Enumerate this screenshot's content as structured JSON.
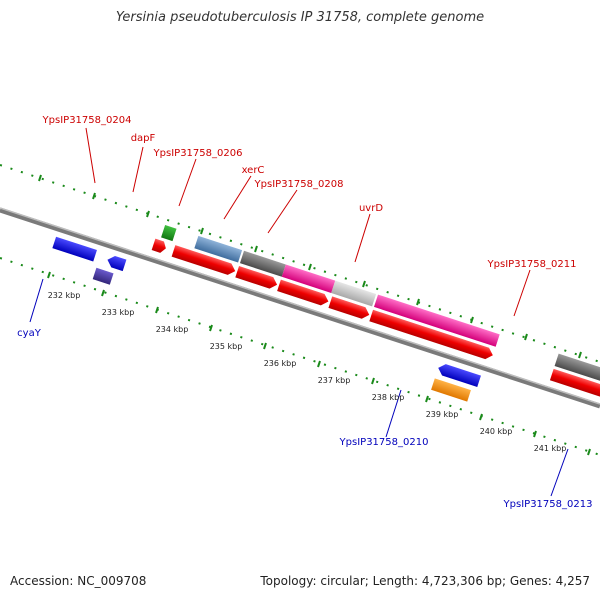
{
  "title": "Yersinia pseudotuberculosis IP 31758, complete genome",
  "footer": {
    "accession": "Accession: NC_009708",
    "summary": "Topology: circular; Length: 4,723,306 bp; Genes: 4,257"
  },
  "colors": {
    "forward_label": "#cc0000",
    "reverse_label": "#0000bb",
    "dots": "#1a8a1a",
    "backbone": "#888888",
    "cds": "#ee0000"
  },
  "ticks": [
    "232 kbp",
    "233 kbp",
    "234 kbp",
    "235 kbp",
    "236 kbp",
    "237 kbp",
    "238 kbp",
    "239 kbp",
    "240 kbp",
    "241 kbp"
  ],
  "labels": {
    "ypsip_0204": "YpsIP31758_0204",
    "dapf": "dapF",
    "ypsip_0206": "YpsIP31758_0206",
    "xerc": "xerC",
    "ypsip_0208": "YpsIP31758_0208",
    "uvrd": "uvrD",
    "ypsip_0211": "YpsIP31758_0211",
    "cyay": "cyaY",
    "ypsip_0210": "YpsIP31758_0210",
    "ypsip_0213": "YpsIP31758_0213"
  }
}
